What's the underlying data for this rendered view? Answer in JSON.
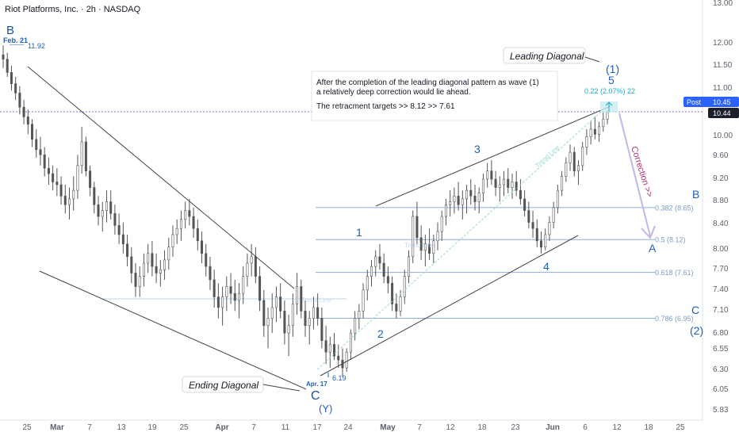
{
  "header": {
    "title": "Riot Platforms, Inc. · 2h · NASDAQ"
  },
  "colors": {
    "wave_blue": "#1e4fa8",
    "label_blue": "#2060b8",
    "level_blue": "#8aaee0",
    "fib_text": "#7d9cc8",
    "trend_line": "#444444",
    "candle": "#555555",
    "dotted_line": "#6f7bd8",
    "cyan": "#1ea8c4",
    "correction_arrow": "#c2b7e8",
    "correction_text": "#b0306a",
    "post_badge_bg": "#2962ff",
    "price_badge_bg": "#1b1f2a"
  },
  "axes": {
    "y_ticks": [
      "13.00",
      "12.00",
      "11.50",
      "11.00",
      "10.45",
      "10.00",
      "9.60",
      "9.20",
      "8.80",
      "8.40",
      "8.00",
      "7.70",
      "7.40",
      "7.10",
      "6.80",
      "6.55",
      "6.30",
      "6.05",
      "5.83"
    ],
    "x_ticks": [
      "25",
      "Mar",
      "7",
      "13",
      "19",
      "25",
      "Apr",
      "7",
      "11",
      "17",
      "24",
      "May",
      "7",
      "12",
      "18",
      "23",
      "Jun",
      "6",
      "12",
      "18",
      "25"
    ]
  },
  "badges": {
    "post_label": "Post",
    "post_price": "10.45",
    "last_price": "10.44"
  },
  "annotations": {
    "leading_diagonal": "Leading Diagonal",
    "ending_diagonal": "Ending Diagonal",
    "wave_B_top": "B",
    "feb21": "Feb. 21",
    "price_1192": "11.92",
    "apr17": "Apr. 17",
    "price_619": "6.19",
    "wave_C_low": "C",
    "wave_Y": "(Y)",
    "wave1": "1",
    "wave2": "2",
    "wave3": "3",
    "wave4": "4",
    "wave5": "5",
    "wave_1_paren": "(1)",
    "gain_label": "0.22 (2.07%) 22",
    "correction": "Correction >>",
    "right_B": "B",
    "right_A": "A",
    "right_C": "C",
    "right_2": "(2)",
    "trend_line_1": "Trend Line",
    "trend_line_2": "Trend Line",
    "trend_line_3": "Trend Line",
    "trend_line_4": "Trend Line"
  },
  "note": {
    "line1": "After the completion of the leading diagonal pattern as wave (1)",
    "line2": "a relatively deep correction would lie ahead.",
    "line3": "The retracment targets >>  8.12  >>  7.61"
  },
  "fib_levels": [
    {
      "label": "0.382 (8.65)",
      "price": 8.65
    },
    {
      "label": "0.5 (8.12)",
      "price": 8.12
    },
    {
      "label": "0.618 (7.61)",
      "price": 7.61
    },
    {
      "label": "0.786 (6.95)",
      "price": 6.95
    }
  ],
  "chart_data": {
    "type": "candlestick",
    "title": "Riot Platforms, Inc. · 2h · NASDAQ",
    "y_scale": "log",
    "ylim": [
      5.75,
      13.1
    ],
    "ohlc": [
      [
        11.7,
        11.92,
        11.4,
        11.6
      ],
      [
        11.6,
        11.75,
        11.2,
        11.3
      ],
      [
        11.3,
        11.45,
        10.9,
        11.05
      ],
      [
        11.05,
        11.2,
        10.7,
        10.85
      ],
      [
        10.85,
        11.0,
        10.4,
        10.55
      ],
      [
        10.55,
        10.7,
        10.2,
        10.35
      ],
      [
        10.35,
        10.5,
        10.0,
        10.2
      ],
      [
        10.2,
        10.3,
        9.75,
        9.9
      ],
      [
        9.9,
        10.1,
        9.55,
        9.7
      ],
      [
        9.7,
        9.95,
        9.4,
        9.6
      ],
      [
        9.6,
        9.75,
        9.2,
        9.35
      ],
      [
        9.35,
        9.55,
        9.05,
        9.25
      ],
      [
        9.25,
        9.4,
        8.95,
        9.1
      ],
      [
        9.1,
        9.35,
        8.85,
        9.05
      ],
      [
        9.05,
        9.2,
        8.7,
        8.85
      ],
      [
        8.85,
        9.05,
        8.55,
        8.7
      ],
      [
        8.7,
        9.0,
        8.45,
        8.8
      ],
      [
        8.8,
        9.2,
        8.6,
        8.95
      ],
      [
        8.95,
        9.6,
        8.8,
        9.4
      ],
      [
        9.4,
        10.15,
        9.25,
        9.85
      ],
      [
        9.85,
        9.95,
        9.2,
        9.3
      ],
      [
        9.3,
        9.4,
        8.85,
        9.0
      ],
      [
        9.0,
        9.1,
        8.55,
        8.7
      ],
      [
        8.7,
        8.85,
        8.35,
        8.5
      ],
      [
        8.5,
        8.75,
        8.25,
        8.6
      ],
      [
        8.6,
        8.95,
        8.4,
        8.75
      ],
      [
        8.75,
        8.95,
        8.45,
        8.55
      ],
      [
        8.55,
        8.7,
        8.2,
        8.35
      ],
      [
        8.35,
        8.55,
        8.05,
        8.2
      ],
      [
        8.2,
        8.4,
        7.9,
        8.05
      ],
      [
        8.05,
        8.2,
        7.7,
        7.85
      ],
      [
        7.85,
        8.0,
        7.45,
        7.6
      ],
      [
        7.6,
        7.75,
        7.25,
        7.4
      ],
      [
        7.4,
        7.7,
        7.25,
        7.55
      ],
      [
        7.55,
        7.9,
        7.4,
        7.75
      ],
      [
        7.75,
        8.05,
        7.6,
        7.9
      ],
      [
        7.9,
        8.1,
        7.55,
        7.7
      ],
      [
        7.7,
        7.9,
        7.45,
        7.6
      ],
      [
        7.6,
        7.8,
        7.4,
        7.65
      ],
      [
        7.65,
        7.95,
        7.5,
        7.8
      ],
      [
        7.8,
        8.15,
        7.65,
        8.0
      ],
      [
        8.0,
        8.35,
        7.85,
        8.2
      ],
      [
        8.2,
        8.45,
        8.05,
        8.3
      ],
      [
        8.3,
        8.6,
        8.1,
        8.45
      ],
      [
        8.45,
        8.75,
        8.3,
        8.6
      ],
      [
        8.6,
        8.8,
        8.35,
        8.5
      ],
      [
        8.5,
        8.65,
        8.15,
        8.3
      ],
      [
        8.3,
        8.45,
        7.95,
        8.1
      ],
      [
        8.1,
        8.25,
        7.75,
        7.9
      ],
      [
        7.9,
        8.05,
        7.55,
        7.7
      ],
      [
        7.7,
        7.85,
        7.35,
        7.5
      ],
      [
        7.5,
        7.65,
        7.1,
        7.25
      ],
      [
        7.25,
        7.45,
        6.95,
        7.1
      ],
      [
        7.1,
        7.4,
        6.85,
        7.25
      ],
      [
        7.25,
        7.55,
        7.05,
        7.4
      ],
      [
        7.4,
        7.6,
        7.15,
        7.3
      ],
      [
        7.3,
        7.5,
        7.05,
        7.2
      ],
      [
        7.2,
        7.45,
        6.95,
        7.3
      ],
      [
        7.3,
        7.7,
        7.15,
        7.55
      ],
      [
        7.55,
        7.9,
        7.4,
        7.75
      ],
      [
        7.75,
        8.05,
        7.55,
        7.85
      ],
      [
        7.85,
        8.0,
        7.45,
        7.55
      ],
      [
        7.55,
        7.7,
        7.05,
        7.2
      ],
      [
        7.2,
        7.35,
        6.7,
        6.85
      ],
      [
        6.85,
        7.1,
        6.55,
        6.95
      ],
      [
        6.95,
        7.3,
        6.75,
        7.1
      ],
      [
        7.1,
        7.4,
        6.9,
        7.25
      ],
      [
        7.25,
        7.45,
        6.95,
        7.05
      ],
      [
        7.05,
        7.2,
        6.6,
        6.75
      ],
      [
        6.75,
        7.0,
        6.45,
        6.85
      ],
      [
        6.85,
        7.3,
        6.7,
        7.15
      ],
      [
        7.15,
        7.6,
        7.0,
        7.4
      ],
      [
        7.4,
        7.5,
        6.95,
        7.05
      ],
      [
        7.05,
        7.2,
        6.7,
        6.85
      ],
      [
        6.85,
        7.05,
        6.6,
        6.95
      ],
      [
        6.95,
        7.25,
        6.8,
        7.1
      ],
      [
        7.1,
        7.3,
        6.85,
        6.95
      ],
      [
        6.95,
        7.1,
        6.55,
        6.65
      ],
      [
        6.65,
        6.85,
        6.35,
        6.5
      ],
      [
        6.5,
        6.7,
        6.3,
        6.6
      ],
      [
        6.6,
        6.75,
        6.4,
        6.45
      ],
      [
        6.45,
        6.6,
        6.3,
        6.4
      ],
      [
        6.4,
        6.55,
        6.19,
        6.3
      ],
      [
        6.3,
        6.55,
        6.25,
        6.5
      ],
      [
        6.5,
        6.8,
        6.4,
        6.75
      ],
      [
        6.75,
        7.05,
        6.65,
        6.95
      ],
      [
        6.95,
        7.15,
        6.8,
        7.05
      ],
      [
        7.05,
        7.45,
        6.95,
        7.35
      ],
      [
        7.35,
        7.65,
        7.2,
        7.55
      ],
      [
        7.55,
        7.8,
        7.4,
        7.7
      ],
      [
        7.7,
        7.95,
        7.55,
        7.85
      ],
      [
        7.85,
        8.05,
        7.65,
        7.75
      ],
      [
        7.75,
        7.9,
        7.45,
        7.55
      ],
      [
        7.55,
        7.7,
        7.3,
        7.45
      ],
      [
        7.45,
        7.55,
        7.05,
        7.15
      ],
      [
        7.15,
        7.3,
        6.95,
        7.05
      ],
      [
        7.05,
        7.35,
        6.98,
        7.25
      ],
      [
        7.25,
        7.65,
        7.15,
        7.55
      ],
      [
        7.55,
        7.95,
        7.45,
        7.85
      ],
      [
        7.85,
        8.6,
        7.75,
        8.5
      ],
      [
        8.5,
        8.75,
        8.05,
        8.15
      ],
      [
        8.15,
        8.35,
        7.8,
        7.95
      ],
      [
        7.95,
        8.2,
        7.7,
        8.05
      ],
      [
        8.05,
        8.3,
        7.8,
        7.9
      ],
      [
        7.9,
        8.2,
        7.75,
        8.1
      ],
      [
        8.1,
        8.4,
        7.95,
        8.25
      ],
      [
        8.25,
        8.6,
        8.1,
        8.5
      ],
      [
        8.5,
        8.8,
        8.35,
        8.7
      ],
      [
        8.7,
        8.95,
        8.5,
        8.75
      ],
      [
        8.75,
        9.0,
        8.55,
        8.85
      ],
      [
        8.85,
        9.1,
        8.6,
        8.7
      ],
      [
        8.7,
        8.95,
        8.45,
        8.8
      ],
      [
        8.8,
        9.05,
        8.55,
        8.95
      ],
      [
        8.95,
        9.15,
        8.7,
        8.85
      ],
      [
        8.85,
        9.05,
        8.6,
        8.75
      ],
      [
        8.75,
        9.0,
        8.55,
        8.9
      ],
      [
        8.9,
        9.25,
        8.75,
        9.15
      ],
      [
        9.15,
        9.45,
        9.0,
        9.3
      ],
      [
        9.3,
        9.5,
        9.05,
        9.15
      ],
      [
        9.15,
        9.3,
        8.85,
        9.0
      ],
      [
        9.0,
        9.2,
        8.75,
        9.05
      ],
      [
        9.05,
        9.3,
        8.85,
        9.15
      ],
      [
        9.15,
        9.35,
        8.9,
        9.0
      ],
      [
        9.0,
        9.25,
        8.8,
        9.1
      ],
      [
        9.1,
        9.3,
        8.85,
        8.95
      ],
      [
        8.95,
        9.15,
        8.7,
        8.8
      ],
      [
        8.8,
        8.95,
        8.5,
        8.6
      ],
      [
        8.6,
        8.75,
        8.3,
        8.4
      ],
      [
        8.4,
        8.6,
        8.15,
        8.3
      ],
      [
        8.3,
        8.45,
        8.0,
        8.1
      ],
      [
        8.1,
        8.25,
        7.9,
        8.0
      ],
      [
        8.0,
        8.3,
        7.95,
        8.2
      ],
      [
        8.2,
        8.5,
        8.1,
        8.4
      ],
      [
        8.4,
        8.75,
        8.3,
        8.65
      ],
      [
        8.65,
        9.05,
        8.55,
        8.95
      ],
      [
        8.95,
        9.3,
        8.85,
        9.2
      ],
      [
        9.2,
        9.55,
        9.1,
        9.45
      ],
      [
        9.45,
        9.8,
        9.3,
        9.65
      ],
      [
        9.65,
        9.75,
        9.2,
        9.3
      ],
      [
        9.3,
        9.5,
        9.05,
        9.4
      ],
      [
        9.4,
        9.85,
        9.3,
        9.75
      ],
      [
        9.75,
        10.1,
        9.6,
        9.95
      ],
      [
        9.95,
        10.25,
        9.8,
        10.1
      ],
      [
        10.1,
        10.35,
        9.9,
        10.0
      ],
      [
        10.0,
        10.25,
        9.85,
        10.15
      ],
      [
        10.15,
        10.45,
        10.05,
        10.3
      ],
      [
        10.3,
        10.48,
        10.2,
        10.44
      ]
    ],
    "wave_points": [
      {
        "label": "B",
        "price": 11.92
      },
      {
        "label": "C (Y)",
        "price": 6.19
      },
      {
        "label": "1",
        "price": 8.3
      },
      {
        "label": "2",
        "price": 6.98
      },
      {
        "label": "3",
        "price": 9.45
      },
      {
        "label": "4",
        "price": 7.9
      },
      {
        "label": "5 (1)",
        "price": 10.48
      }
    ],
    "fib_retracements": [
      {
        "ratio": 0.382,
        "price": 8.65
      },
      {
        "ratio": 0.5,
        "price": 8.12
      },
      {
        "ratio": 0.618,
        "price": 7.61
      },
      {
        "ratio": 0.786,
        "price": 6.95
      }
    ],
    "last_price": 10.44,
    "post_price": 10.45
  }
}
